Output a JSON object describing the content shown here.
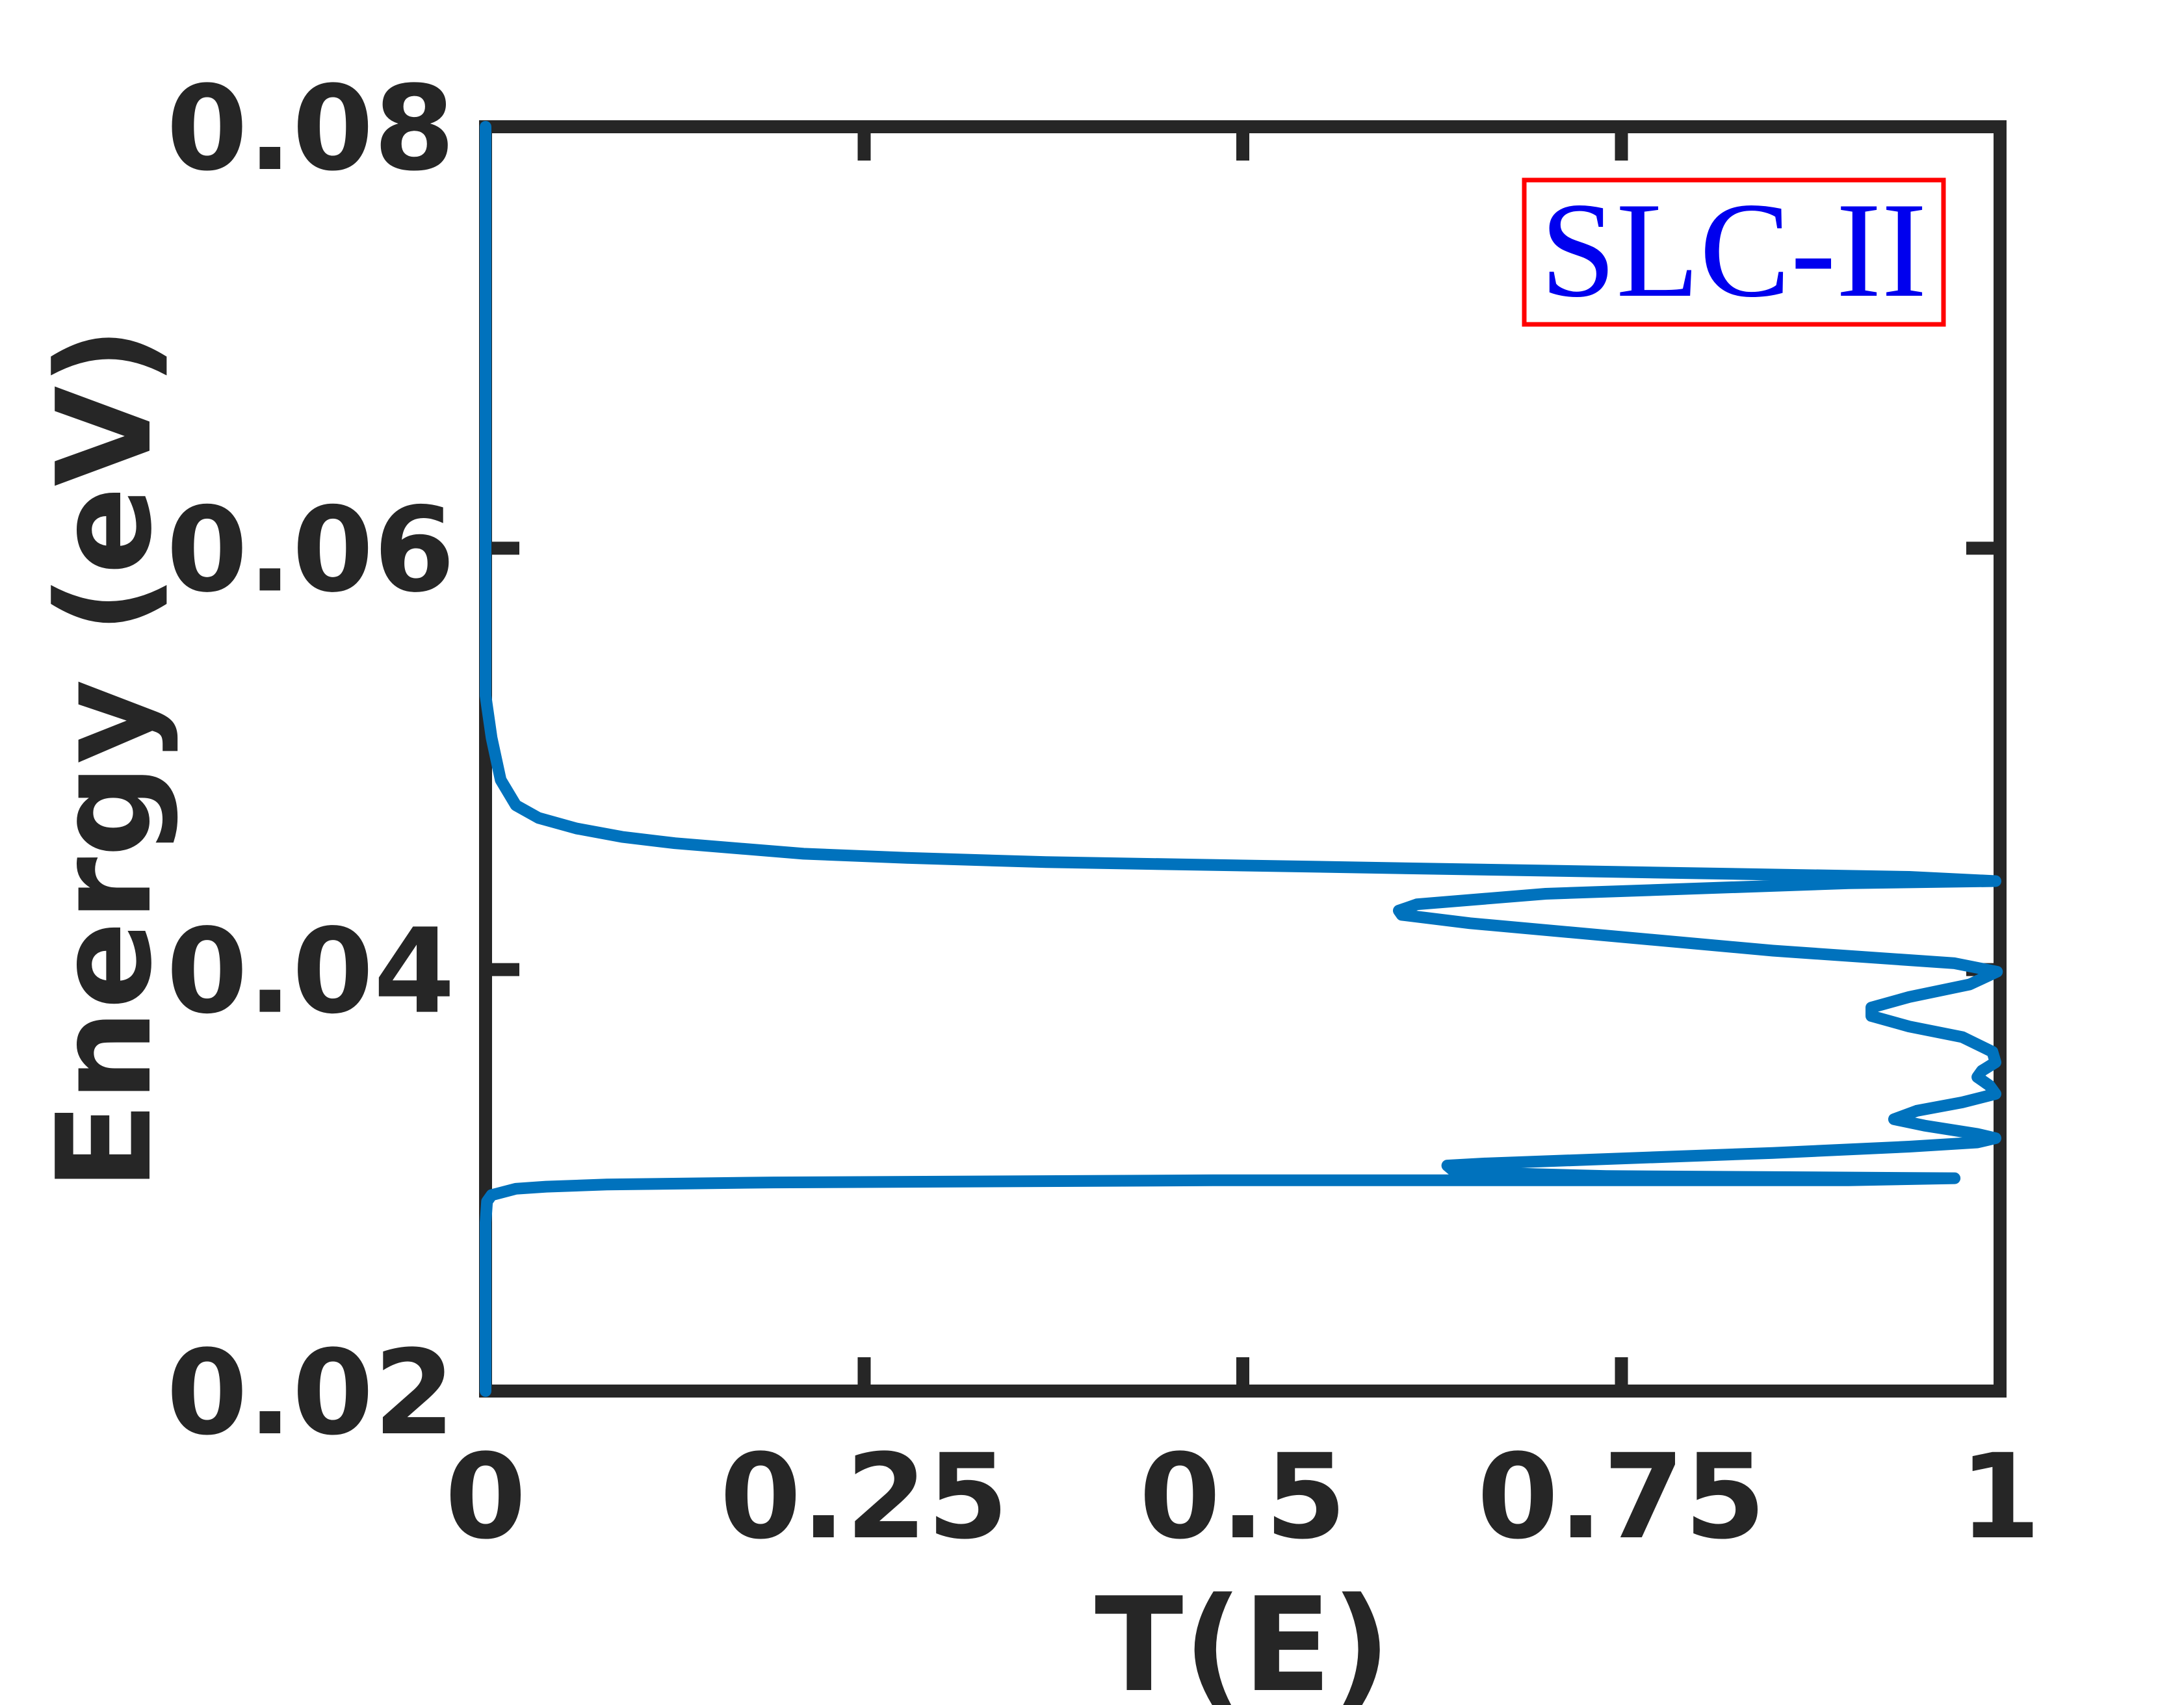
{
  "chart_data": {
    "type": "line",
    "title": "",
    "xlabel": "T(E)",
    "ylabel": "Energy (eV)",
    "xlim": [
      0,
      1
    ],
    "ylim": [
      0.02,
      0.08
    ],
    "x_ticks": [
      0,
      0.25,
      0.5,
      0.75,
      1
    ],
    "x_tick_labels": [
      "0",
      "0.25",
      "0.5",
      "0.75",
      "1"
    ],
    "y_ticks": [
      0.02,
      0.04,
      0.06,
      0.08
    ],
    "y_tick_labels": [
      "0.02",
      "0.04",
      "0.06",
      "0.08"
    ],
    "grid": false,
    "box": true,
    "annotation": {
      "text": "SLC-II",
      "text_color": "#0000ee",
      "border_color": "#ff0000",
      "position": "top-right"
    },
    "series": [
      {
        "color": "#0072bd",
        "points": [
          [
            0.0,
            0.02
          ],
          [
            0.0,
            0.025
          ],
          [
            0.0,
            0.028
          ],
          [
            0.001,
            0.029
          ],
          [
            0.004,
            0.0293
          ],
          [
            0.02,
            0.0296
          ],
          [
            0.04,
            0.0297
          ],
          [
            0.08,
            0.0298
          ],
          [
            0.19,
            0.0299
          ],
          [
            0.48,
            0.03
          ],
          [
            0.9,
            0.03
          ],
          [
            0.97,
            0.0301
          ],
          [
            0.74,
            0.0302
          ],
          [
            0.64,
            0.0304
          ],
          [
            0.635,
            0.0307
          ],
          [
            0.66,
            0.0308
          ],
          [
            0.85,
            0.0313
          ],
          [
            0.94,
            0.0316
          ],
          [
            0.985,
            0.0318
          ],
          [
            0.997,
            0.032
          ],
          [
            0.985,
            0.0322
          ],
          [
            0.95,
            0.0326
          ],
          [
            0.93,
            0.0329
          ],
          [
            0.945,
            0.0333
          ],
          [
            0.975,
            0.0337
          ],
          [
            0.997,
            0.0341
          ],
          [
            0.993,
            0.0345
          ],
          [
            0.985,
            0.0349
          ],
          [
            0.988,
            0.0352
          ],
          [
            0.997,
            0.0356
          ],
          [
            0.995,
            0.0361
          ],
          [
            0.975,
            0.0368
          ],
          [
            0.94,
            0.0373
          ],
          [
            0.915,
            0.0378
          ],
          [
            0.915,
            0.0382
          ],
          [
            0.94,
            0.0387
          ],
          [
            0.98,
            0.0393
          ],
          [
            0.998,
            0.0399
          ],
          [
            0.97,
            0.0403
          ],
          [
            0.85,
            0.0409
          ],
          [
            0.65,
            0.0422
          ],
          [
            0.605,
            0.0426
          ],
          [
            0.603,
            0.0428
          ],
          [
            0.615,
            0.0431
          ],
          [
            0.7,
            0.0436
          ],
          [
            0.9,
            0.0441
          ],
          [
            0.997,
            0.0442
          ],
          [
            0.94,
            0.0444
          ],
          [
            0.37,
            0.0451
          ],
          [
            0.28,
            0.0453
          ],
          [
            0.21,
            0.0455
          ],
          [
            0.125,
            0.046
          ],
          [
            0.09,
            0.0463
          ],
          [
            0.06,
            0.0467
          ],
          [
            0.035,
            0.0472
          ],
          [
            0.02,
            0.0478
          ],
          [
            0.01,
            0.049
          ],
          [
            0.004,
            0.051
          ],
          [
            0.0,
            0.053
          ],
          [
            0.0,
            0.08
          ]
        ]
      }
    ]
  }
}
